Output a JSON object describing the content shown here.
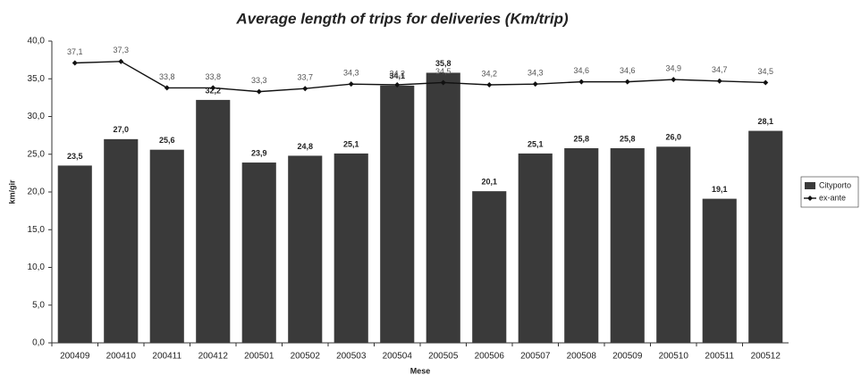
{
  "chart_data": {
    "type": "bar",
    "title": "Average length of trips for deliveries (Km/trip)",
    "y_label": "km/gir",
    "x_label": "Mese",
    "categories": [
      "200409",
      "200410",
      "200411",
      "200412",
      "200501",
      "200502",
      "200503",
      "200504",
      "200505",
      "200506",
      "200507",
      "200508",
      "200509",
      "200510",
      "200511",
      "200512"
    ],
    "series": [
      {
        "name": "Cityporto",
        "type": "bar",
        "color": "#3a3a3a",
        "values": [
          23.5,
          27.0,
          25.6,
          32.2,
          23.9,
          24.8,
          25.1,
          34.1,
          35.8,
          20.1,
          25.1,
          25.8,
          25.8,
          26.0,
          19.1,
          28.1
        ],
        "value_labels": [
          "23,5",
          "27,0",
          "25,6",
          "32,2",
          "23,9",
          "24,8",
          "25,1",
          "34,1",
          "35,8",
          "20,1",
          "25,1",
          "25,8",
          "25,8",
          "26,0",
          "19,1",
          "28,1"
        ]
      },
      {
        "name": "ex-ante",
        "type": "line",
        "color": "#111111",
        "values": [
          37.1,
          37.3,
          33.8,
          33.8,
          33.3,
          33.7,
          34.3,
          34.2,
          34.5,
          34.2,
          34.3,
          34.6,
          34.6,
          34.9,
          34.7,
          34.5
        ],
        "value_labels": [
          "37,1",
          "37,3",
          "33,8",
          "33,8",
          "33,3",
          "33,7",
          "34,3",
          "34,2",
          "34,5",
          "34,2",
          "34,3",
          "34,6",
          "34,6",
          "34,9",
          "34,7",
          "34,5"
        ]
      }
    ],
    "ylim": [
      0,
      40
    ],
    "yticks": [
      {
        "value": 0,
        "label": "0,0"
      },
      {
        "value": 5,
        "label": "5,0"
      },
      {
        "value": 10,
        "label": "10,0"
      },
      {
        "value": 15,
        "label": "15,0"
      },
      {
        "value": 20,
        "label": "20,0"
      },
      {
        "value": 25,
        "label": "25,0"
      },
      {
        "value": 30,
        "label": "30,0"
      },
      {
        "value": 35,
        "label": "35,0"
      },
      {
        "value": 40,
        "label": "40,0"
      }
    ],
    "grid": false,
    "legend": "right"
  }
}
